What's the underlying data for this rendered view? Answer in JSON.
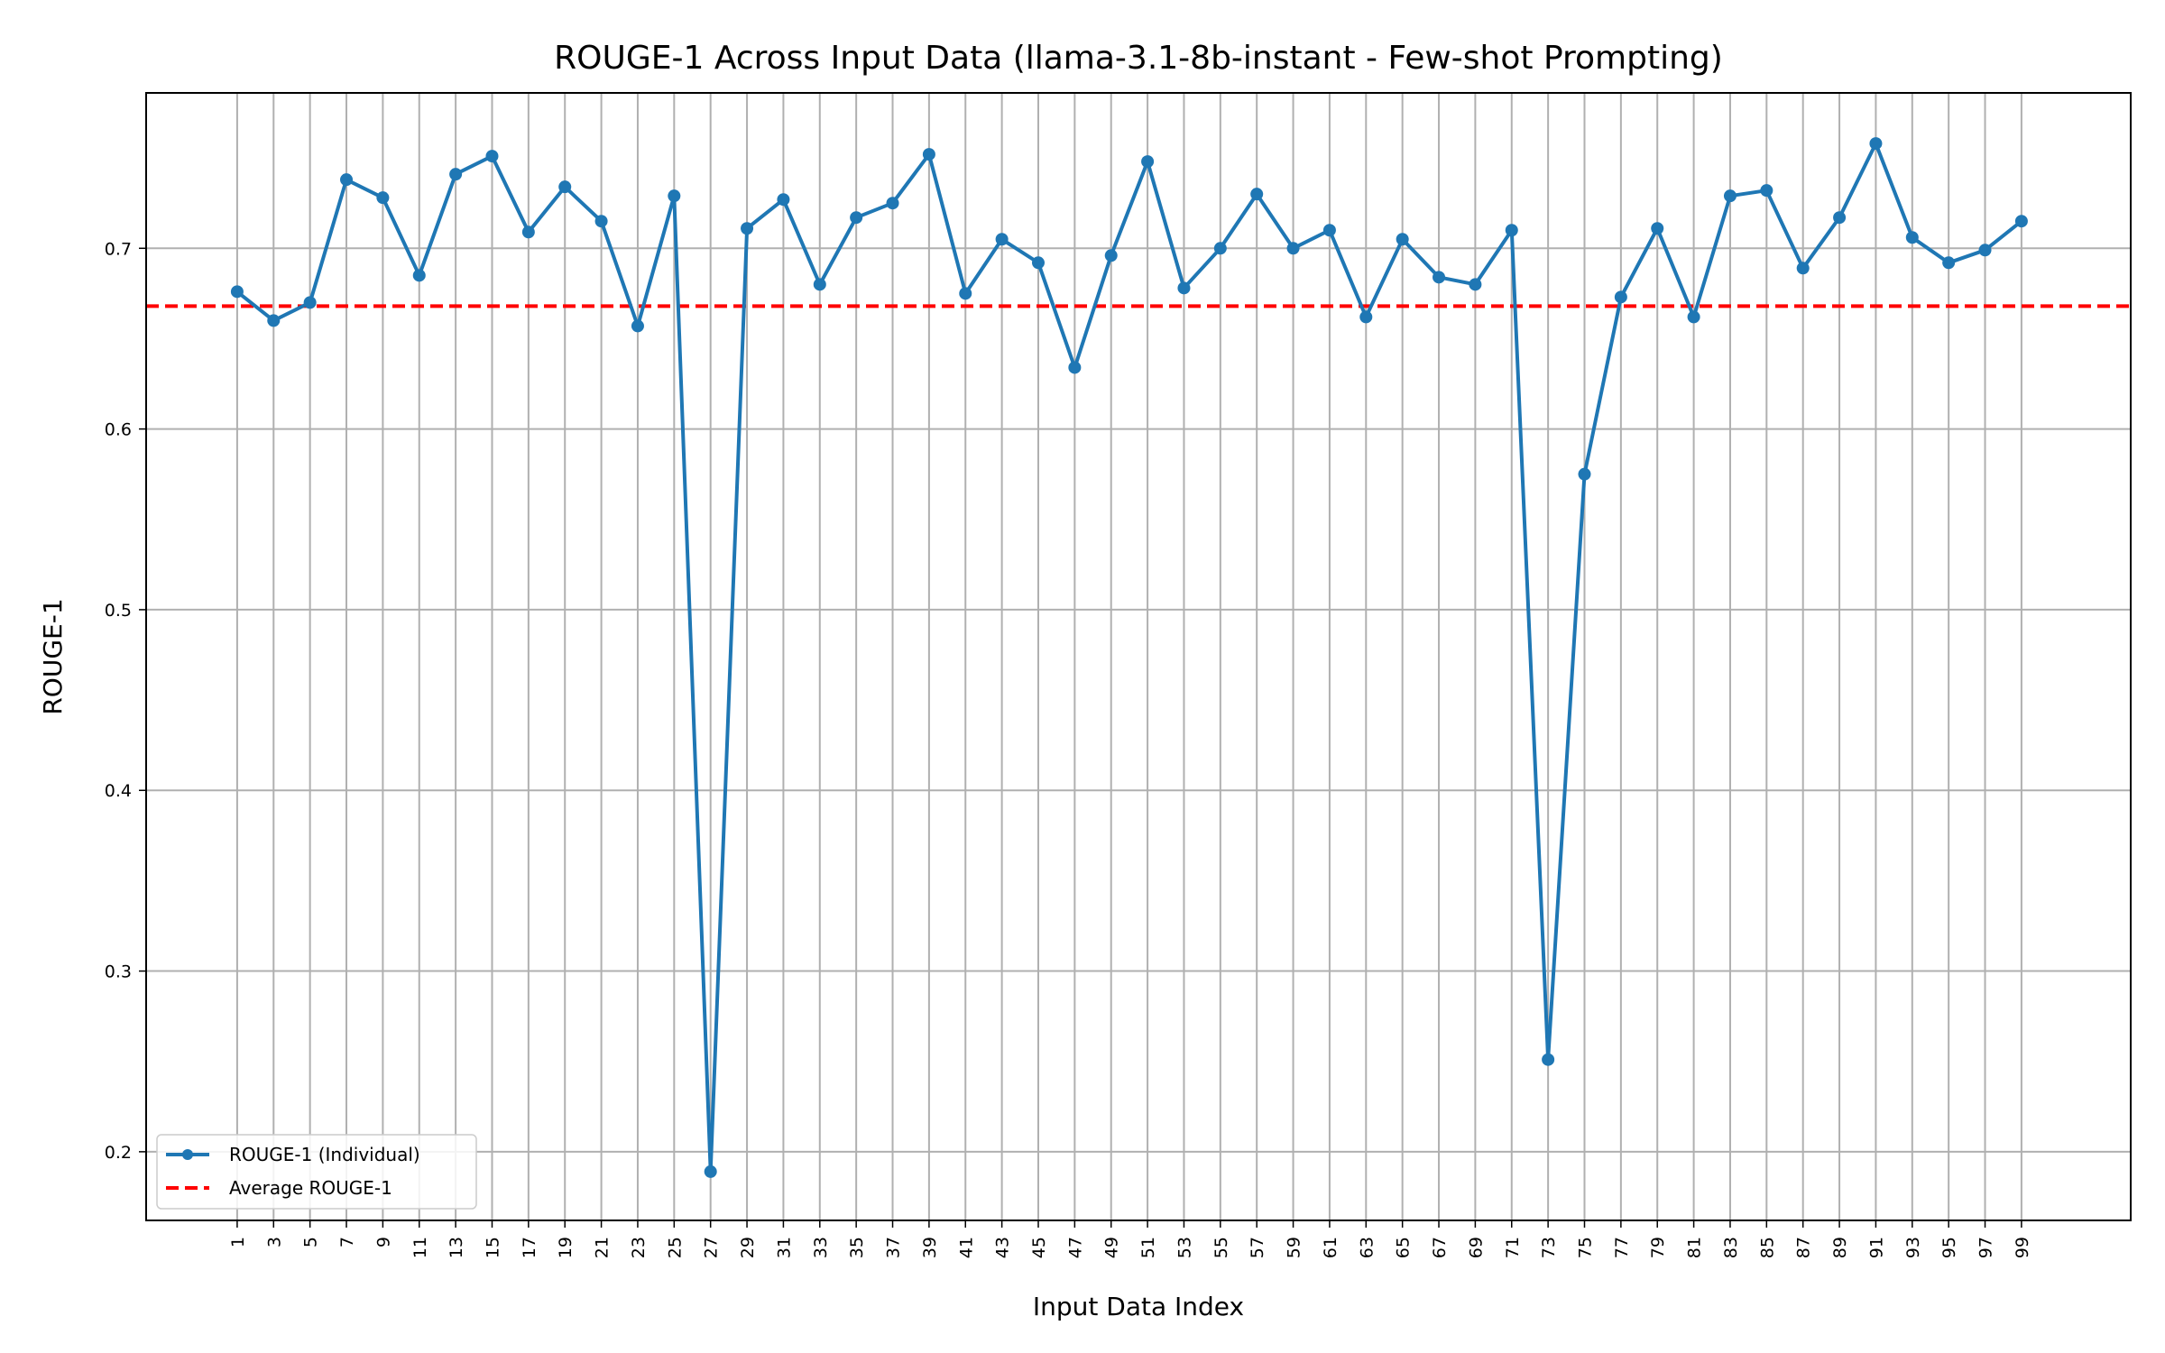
{
  "chart_data": {
    "type": "line",
    "title": "ROUGE-1 Across Input Data (llama-3.1-8b-instant - Few-shot Prompting)",
    "xlabel": "Input Data Index",
    "ylabel": "ROUGE-1",
    "x": [
      1,
      3,
      5,
      7,
      9,
      11,
      13,
      15,
      17,
      19,
      21,
      23,
      25,
      27,
      29,
      31,
      33,
      35,
      37,
      39,
      41,
      43,
      45,
      47,
      49,
      51,
      53,
      55,
      57,
      59,
      61,
      63,
      65,
      67,
      69,
      71,
      73,
      75,
      77,
      79,
      81,
      83,
      85,
      87,
      89,
      91,
      93,
      95,
      97,
      99
    ],
    "x_ticks": [
      1,
      3,
      5,
      7,
      9,
      11,
      13,
      15,
      17,
      19,
      21,
      23,
      25,
      27,
      29,
      31,
      33,
      35,
      37,
      39,
      41,
      43,
      45,
      47,
      49,
      51,
      53,
      55,
      57,
      59,
      61,
      63,
      65,
      67,
      69,
      71,
      73,
      75,
      77,
      79,
      81,
      83,
      85,
      87,
      89,
      91,
      93,
      95,
      97,
      99
    ],
    "xlim": [
      -4,
      105
    ],
    "y_ticks": [
      0.2,
      0.3,
      0.4,
      0.5,
      0.6,
      0.7
    ],
    "ylim": [
      0.162,
      0.786
    ],
    "grid": true,
    "legend_position": "lower-left",
    "series": [
      {
        "name": "ROUGE-1 (Individual)",
        "color": "#1f77b4",
        "style": "solid-with-markers",
        "values": [
          0.676,
          0.66,
          0.67,
          0.738,
          0.728,
          0.685,
          0.741,
          0.751,
          0.709,
          0.734,
          0.715,
          0.657,
          0.729,
          0.189,
          0.711,
          0.727,
          0.68,
          0.717,
          0.725,
          0.752,
          0.675,
          0.705,
          0.692,
          0.634,
          0.696,
          0.748,
          0.678,
          0.7,
          0.73,
          0.7,
          0.71,
          0.662,
          0.705,
          0.684,
          0.68,
          0.71,
          0.251,
          0.575,
          0.673,
          0.711,
          0.662,
          0.729,
          0.732,
          0.689,
          0.717,
          0.758,
          0.706,
          0.692,
          0.699,
          0.715
        ]
      },
      {
        "name": "Average ROUGE-1",
        "color": "#ff0000",
        "style": "dashed",
        "value": 0.668
      }
    ]
  }
}
